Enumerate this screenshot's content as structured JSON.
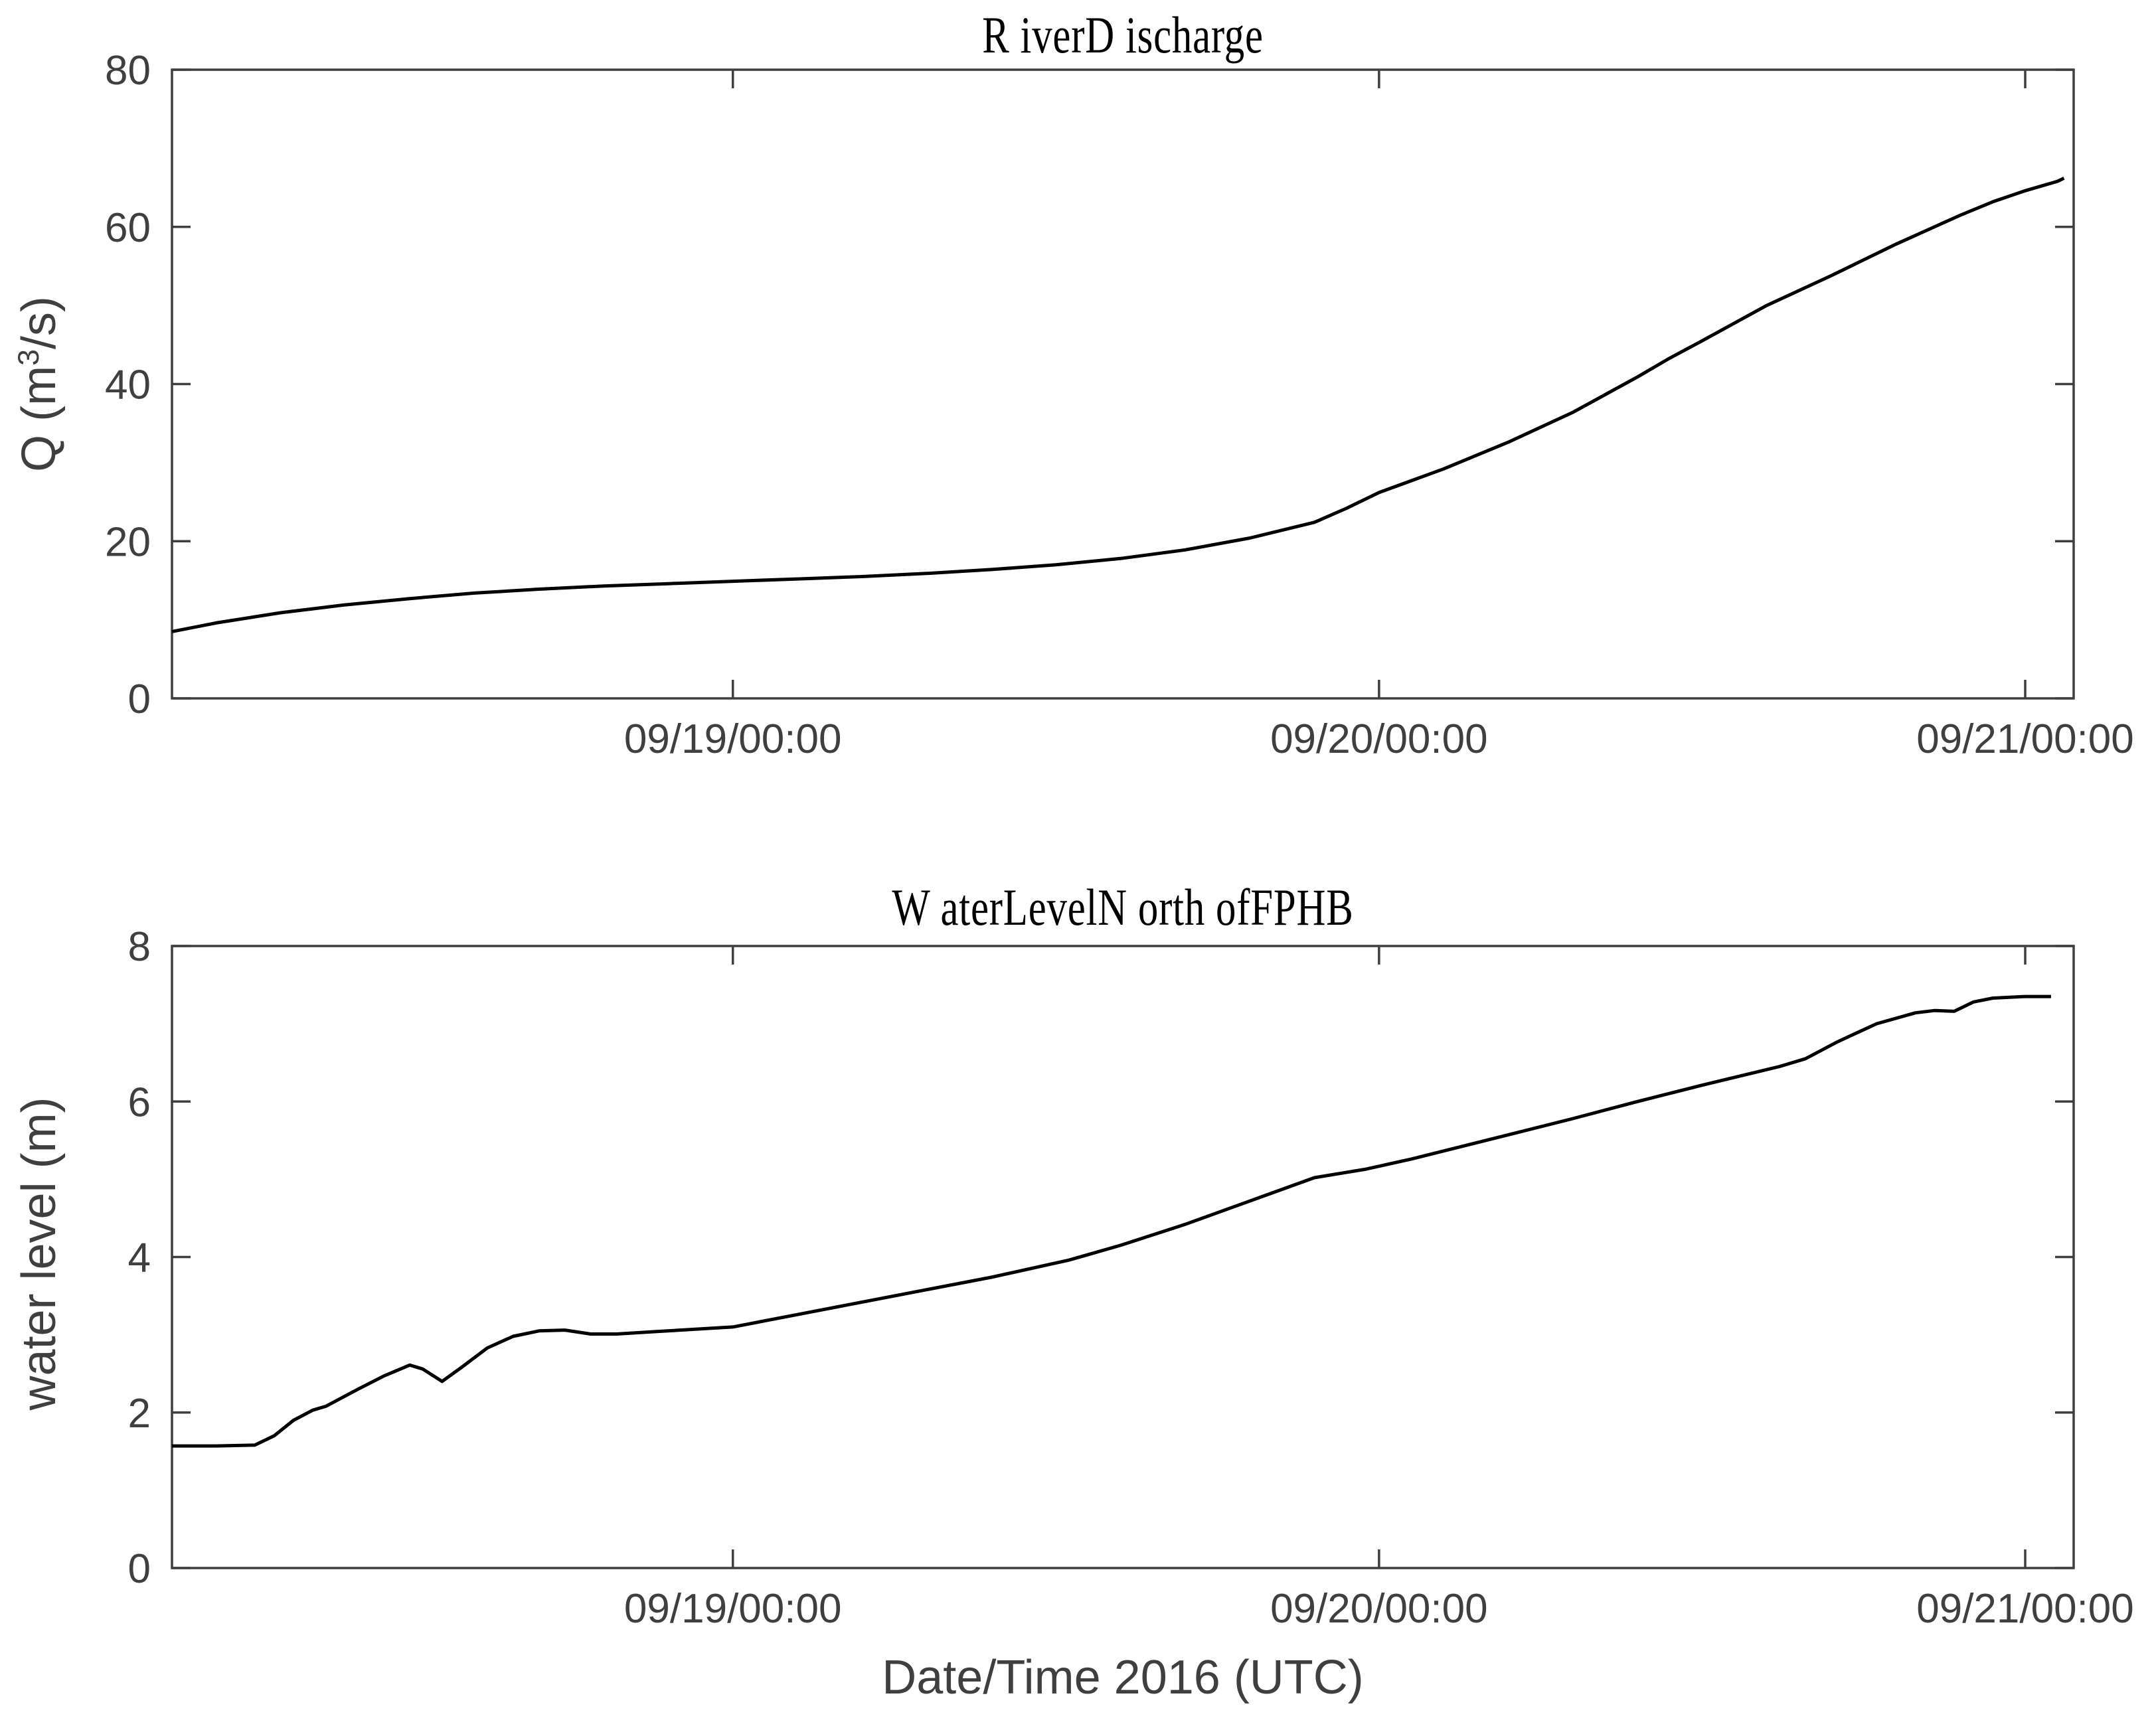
{
  "figure": {
    "background": "#ffffff",
    "axis_color": "#3f3f3f",
    "tick_text_color": "#3f3f3f",
    "title_color": "#000000",
    "line_color": "#000000"
  },
  "chart_data": [
    {
      "type": "line",
      "title": "R iverD ischarge",
      "ylabel_parts": [
        "Q (m",
        "3",
        "/s)"
      ],
      "xlabel": "",
      "xlim": [
        18.132,
        21.075
      ],
      "ylim": [
        0,
        80
      ],
      "grid": false,
      "legend": "none",
      "x_ticks": [
        {
          "value": 19,
          "label": "09/19/00:00"
        },
        {
          "value": 20,
          "label": "09/20/00:00"
        },
        {
          "value": 21,
          "label": "09/21/00:00"
        }
      ],
      "y_ticks": [
        {
          "value": 0,
          "label": "0"
        },
        {
          "value": 20,
          "label": "20"
        },
        {
          "value": 40,
          "label": "40"
        },
        {
          "value": 60,
          "label": "60"
        },
        {
          "value": 80,
          "label": "80"
        }
      ],
      "series": [
        {
          "name": "river-discharge",
          "x_unit": "day of Sept 2016 (UTC)",
          "y_unit": "m3/s",
          "points": [
            [
              18.132,
              8.5
            ],
            [
              18.2,
              9.6
            ],
            [
              18.3,
              10.9
            ],
            [
              18.4,
              11.9
            ],
            [
              18.5,
              12.7
            ],
            [
              18.6,
              13.4
            ],
            [
              18.7,
              13.9
            ],
            [
              18.8,
              14.3
            ],
            [
              18.9,
              14.6
            ],
            [
              19.0,
              14.9
            ],
            [
              19.1,
              15.2
            ],
            [
              19.2,
              15.5
            ],
            [
              19.3,
              15.9
            ],
            [
              19.4,
              16.4
            ],
            [
              19.5,
              17.0
            ],
            [
              19.6,
              17.8
            ],
            [
              19.7,
              18.9
            ],
            [
              19.8,
              20.4
            ],
            [
              19.9,
              22.4
            ],
            [
              19.95,
              24.2
            ],
            [
              20.0,
              26.2
            ],
            [
              20.05,
              27.7
            ],
            [
              20.1,
              29.2
            ],
            [
              20.2,
              32.6
            ],
            [
              20.3,
              36.4
            ],
            [
              20.4,
              40.9
            ],
            [
              20.45,
              43.3
            ],
            [
              20.5,
              45.5
            ],
            [
              20.6,
              50.0
            ],
            [
              20.7,
              53.8
            ],
            [
              20.8,
              57.8
            ],
            [
              20.9,
              61.5
            ],
            [
              20.95,
              63.2
            ],
            [
              21.0,
              64.6
            ],
            [
              21.05,
              65.8
            ],
            [
              21.06,
              66.2
            ]
          ]
        }
      ]
    },
    {
      "type": "line",
      "title": "W aterLevelN orth ofFPHB",
      "ylabel": "water level (m)",
      "xlabel": "Date/Time 2016 (UTC)",
      "xlim": [
        18.132,
        21.075
      ],
      "ylim": [
        0,
        8
      ],
      "grid": false,
      "legend": "none",
      "x_ticks": [
        {
          "value": 19,
          "label": "09/19/00:00"
        },
        {
          "value": 20,
          "label": "09/20/00:00"
        },
        {
          "value": 21,
          "label": "09/21/00:00"
        }
      ],
      "y_ticks": [
        {
          "value": 0,
          "label": "0"
        },
        {
          "value": 2,
          "label": "2"
        },
        {
          "value": 4,
          "label": "4"
        },
        {
          "value": 6,
          "label": "6"
        },
        {
          "value": 8,
          "label": "8"
        }
      ],
      "series": [
        {
          "name": "water-level-north-of-fphb",
          "x_unit": "day of Sept 2016 (UTC)",
          "y_unit": "m",
          "points": [
            [
              18.132,
              1.57
            ],
            [
              18.2,
              1.57
            ],
            [
              18.26,
              1.58
            ],
            [
              18.29,
              1.7
            ],
            [
              18.32,
              1.9
            ],
            [
              18.35,
              2.03
            ],
            [
              18.37,
              2.08
            ],
            [
              18.42,
              2.3
            ],
            [
              18.46,
              2.47
            ],
            [
              18.5,
              2.61
            ],
            [
              18.52,
              2.56
            ],
            [
              18.55,
              2.4
            ],
            [
              18.58,
              2.58
            ],
            [
              18.62,
              2.83
            ],
            [
              18.66,
              2.98
            ],
            [
              18.7,
              3.05
            ],
            [
              18.74,
              3.06
            ],
            [
              18.78,
              3.01
            ],
            [
              18.82,
              3.01
            ],
            [
              18.88,
              3.04
            ],
            [
              19.0,
              3.1
            ],
            [
              19.1,
              3.26
            ],
            [
              19.2,
              3.42
            ],
            [
              19.3,
              3.58
            ],
            [
              19.4,
              3.74
            ],
            [
              19.52,
              3.96
            ],
            [
              19.6,
              4.15
            ],
            [
              19.7,
              4.42
            ],
            [
              19.8,
              4.72
            ],
            [
              19.9,
              5.02
            ],
            [
              19.98,
              5.13
            ],
            [
              20.05,
              5.26
            ],
            [
              20.18,
              5.53
            ],
            [
              20.3,
              5.78
            ],
            [
              20.4,
              6.0
            ],
            [
              20.5,
              6.21
            ],
            [
              20.62,
              6.45
            ],
            [
              20.66,
              6.55
            ],
            [
              20.71,
              6.77
            ],
            [
              20.77,
              7.0
            ],
            [
              20.83,
              7.14
            ],
            [
              20.86,
              7.17
            ],
            [
              20.89,
              7.16
            ],
            [
              20.905,
              7.22
            ],
            [
              20.92,
              7.28
            ],
            [
              20.95,
              7.33
            ],
            [
              21.0,
              7.35
            ],
            [
              21.04,
              7.35
            ]
          ]
        }
      ]
    }
  ]
}
